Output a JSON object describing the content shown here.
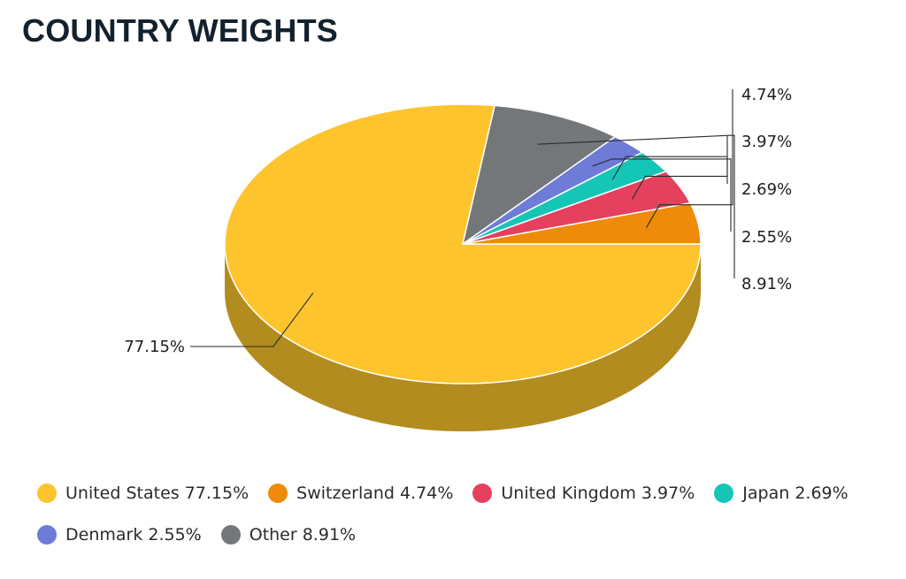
{
  "chart_data": {
    "type": "pie",
    "title": "COUNTRY WEIGHTS",
    "categories": [
      "United States",
      "Switzerland",
      "United Kingdom",
      "Japan",
      "Denmark",
      "Other"
    ],
    "values": [
      77.15,
      4.74,
      3.97,
      2.69,
      2.55,
      8.91
    ],
    "value_labels": [
      "77.15%",
      "4.74%",
      "3.97%",
      "2.69%",
      "2.55%",
      "8.91%"
    ],
    "legend_labels": [
      "United States 77.15%",
      "Switzerland 4.74%",
      "United Kingdom 3.97%",
      "Japan 2.69%",
      "Denmark 2.55%",
      "Other 8.91%"
    ],
    "colors": [
      "#fec42e",
      "#ef8b0b",
      "#e5405e",
      "#15c6b7",
      "#6e7bd7",
      "#73777a"
    ],
    "side_color": "#b28c1f",
    "style": "3d",
    "legend_position": "bottom"
  }
}
